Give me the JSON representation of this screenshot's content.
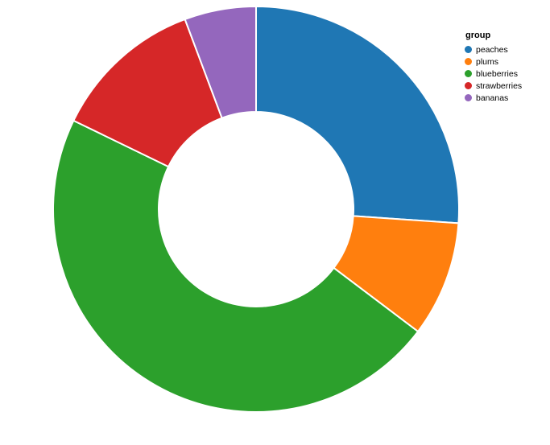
{
  "chart_data": {
    "type": "pie",
    "subtype": "donut",
    "title": "",
    "legend": {
      "title": "group",
      "position": "top-right"
    },
    "categories": [
      "peaches",
      "plums",
      "blueberries",
      "strawberries",
      "bananas"
    ],
    "values_percent": [
      26.1,
      9.2,
      46.9,
      12.1,
      5.7
    ],
    "angles_deg": [
      94,
      33,
      169,
      43.5,
      20.5
    ],
    "colors": [
      "#1f77b4",
      "#ff7f0e",
      "#2ca02c",
      "#d62728",
      "#9467bd"
    ],
    "start_angle_deg": 0,
    "direction": "clockwise",
    "inner_radius_ratio": 0.48,
    "slice_separator_color": "#ffffff",
    "background": "#ffffff"
  }
}
